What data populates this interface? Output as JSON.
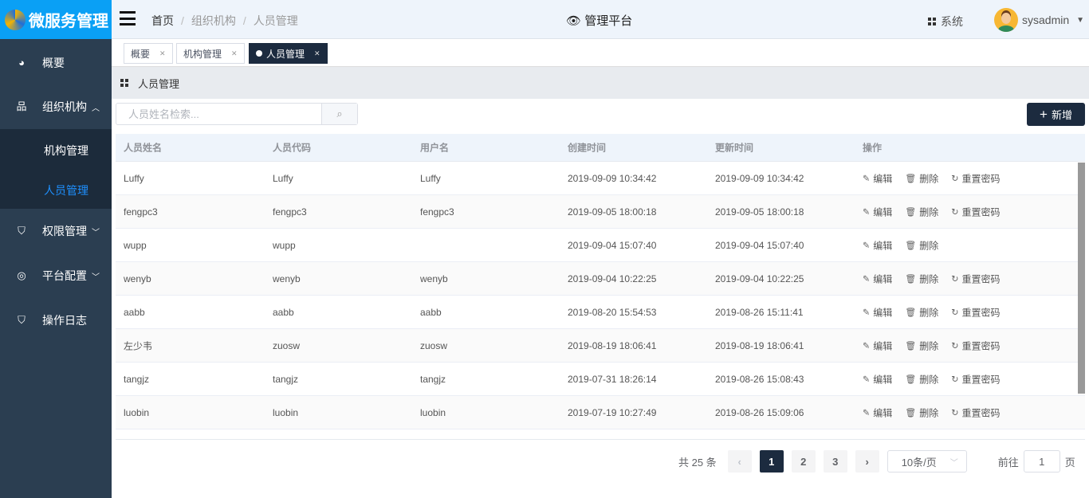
{
  "app": {
    "title": "微服务管理",
    "platform": "管理平台",
    "system_label": "系统",
    "username": "sysadmin"
  },
  "breadcrumb": [
    "首页",
    "组织机构",
    "人员管理"
  ],
  "sidebar": {
    "items": [
      {
        "label": "概要",
        "icon": "dashboard-icon"
      },
      {
        "label": "组织机构",
        "icon": "org-tree-icon",
        "expanded": true,
        "children": [
          {
            "label": "机构管理"
          },
          {
            "label": "人员管理",
            "active": true
          }
        ]
      },
      {
        "label": "权限管理",
        "icon": "shield-key-icon"
      },
      {
        "label": "平台配置",
        "icon": "globe-icon"
      },
      {
        "label": "操作日志",
        "icon": "shield-user-icon"
      }
    ]
  },
  "tabs": [
    {
      "label": "概要"
    },
    {
      "label": "机构管理"
    },
    {
      "label": "人员管理",
      "active": true
    }
  ],
  "page_title": "人员管理",
  "search": {
    "placeholder": "人员姓名检索...",
    "value": ""
  },
  "add_label": "新增",
  "table": {
    "columns": [
      "人员姓名",
      "人员代码",
      "用户名",
      "创建时间",
      "更新时间",
      "操作"
    ],
    "actions": {
      "edit": "编辑",
      "delete": "删除",
      "reset": "重置密码"
    },
    "rows": [
      {
        "name": "Luffy",
        "code": "Luffy",
        "user": "Luffy",
        "created": "2019-09-09 10:34:42",
        "updated": "2019-09-09 10:34:42",
        "reset": true
      },
      {
        "name": "fengpc3",
        "code": "fengpc3",
        "user": "fengpc3",
        "created": "2019-09-05 18:00:18",
        "updated": "2019-09-05 18:00:18",
        "reset": true
      },
      {
        "name": "wupp",
        "code": "wupp",
        "user": "",
        "created": "2019-09-04 15:07:40",
        "updated": "2019-09-04 15:07:40",
        "reset": false
      },
      {
        "name": "wenyb",
        "code": "wenyb",
        "user": "wenyb",
        "created": "2019-09-04 10:22:25",
        "updated": "2019-09-04 10:22:25",
        "reset": true
      },
      {
        "name": "aabb",
        "code": "aabb",
        "user": "aabb",
        "created": "2019-08-20 15:54:53",
        "updated": "2019-08-26 15:11:41",
        "reset": true
      },
      {
        "name": "左少韦",
        "code": "zuosw",
        "user": "zuosw",
        "created": "2019-08-19 18:06:41",
        "updated": "2019-08-19 18:06:41",
        "reset": true
      },
      {
        "name": "tangjz",
        "code": "tangjz",
        "user": "tangjz",
        "created": "2019-07-31 18:26:14",
        "updated": "2019-08-26 15:08:43",
        "reset": true
      },
      {
        "name": "luobin",
        "code": "luobin",
        "user": "luobin",
        "created": "2019-07-19 10:27:49",
        "updated": "2019-08-26 15:09:06",
        "reset": true
      }
    ]
  },
  "pagination": {
    "total_label": "共 25 条",
    "pages": [
      "1",
      "2",
      "3"
    ],
    "current": "1",
    "page_size": "10条/页",
    "goto_label": "前往",
    "goto_value": "1",
    "page_suffix": "页"
  }
}
